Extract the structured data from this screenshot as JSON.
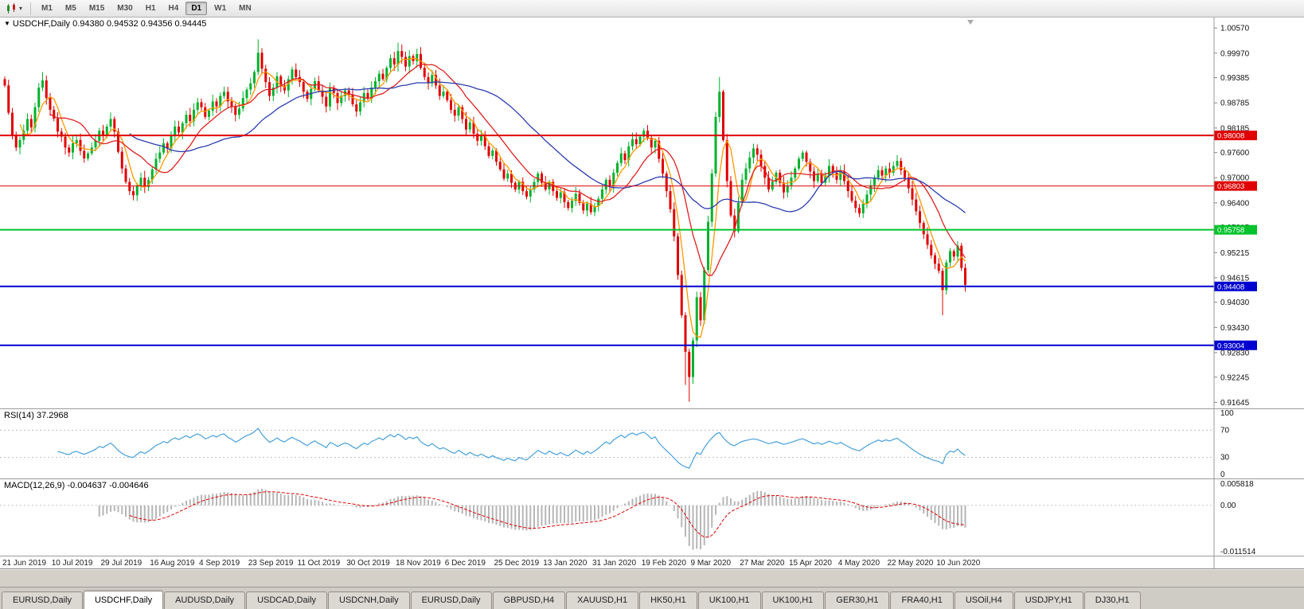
{
  "toolbar": {
    "timeframes": [
      "M1",
      "M5",
      "M15",
      "M30",
      "H1",
      "H4",
      "D1",
      "W1",
      "MN"
    ],
    "active_timeframe": "D1"
  },
  "chart": {
    "header_readout": "USDCHF,Daily 0.94380 0.94532 0.94356 0.94445"
  },
  "indicators": {
    "rsi": {
      "label": "RSI(14) 37.2968",
      "period": 14,
      "value": "37.2968",
      "levels": [
        "100",
        "70",
        "30",
        "0"
      ],
      "line_color": "#46a0dc"
    },
    "macd": {
      "label": "MACD(12,26,9) -0.004637 -0.004646",
      "fast": 12,
      "slow": 26,
      "signal": 9,
      "value": "-0.004637",
      "signal_value": "-0.004646",
      "axis_labels": [
        "0.005818",
        "0.00",
        "-0.011514"
      ],
      "histogram_color": "#b6b6b6",
      "signal_color": "#e00000"
    }
  },
  "tabs": {
    "items": [
      "EURUSD,Daily",
      "USDCHF,Daily",
      "AUDUSD,Daily",
      "USDCAD,Daily",
      "USDCNH,Daily",
      "EURUSD,Daily",
      "GBPUSD,H4",
      "XAUUSD,H1",
      "HK50,H1",
      "UK100,H1",
      "UK100,H1",
      "GER30,H1",
      "FRA40,H1",
      "USOil,H4",
      "USDJPY,H1",
      "DJ30,H1"
    ],
    "active_index": 1
  },
  "chart_data": {
    "type": "candlestick",
    "symbol": "USDCHF",
    "timeframe": "Daily",
    "ohlc_readout": {
      "open": "0.94380",
      "high": "0.94532",
      "low": "0.94356",
      "close": "0.94445"
    },
    "x_labels": [
      "21 Jun 2019",
      "10 Jul 2019",
      "29 Jul 2019",
      "16 Aug 2019",
      "4 Sep 2019",
      "23 Sep 2019",
      "11 Oct 2019",
      "30 Oct 2019",
      "18 Nov 2019",
      "6 Dec 2019",
      "25 Dec 2019",
      "13 Jan 2020",
      "31 Jan 2020",
      "19 Feb 2020",
      "9 Mar 2020",
      "27 Mar 2020",
      "15 Apr 2020",
      "4 May 2020",
      "22 May 2020",
      "10 Jun 2020"
    ],
    "bars_per_label": 13,
    "price_axis_ticks": [
      "1.00570",
      "0.99970",
      "0.99385",
      "0.98785",
      "0.98185",
      "0.97600",
      "0.97000",
      "0.96400",
      "0.95815",
      "0.95215",
      "0.94615",
      "0.94030",
      "0.93430",
      "0.92830",
      "0.92245",
      "0.91645"
    ],
    "hlines": [
      {
        "price": 0.98008,
        "label": "0.98008",
        "color": "#e00000",
        "width": 2
      },
      {
        "price": 0.96803,
        "label": "0.96803",
        "color": "#e00000",
        "width": 1
      },
      {
        "price": 0.95758,
        "label": "0.95758",
        "color": "#00c32b",
        "width": 2
      },
      {
        "price": 0.94408,
        "label": "0.94408",
        "color": "#0000d0",
        "width": 2
      },
      {
        "price": 0.93004,
        "label": "0.93004",
        "color": "#0000d0",
        "width": 2
      }
    ],
    "moving_averages": [
      {
        "period": 5,
        "color": "#ff9900"
      },
      {
        "period": 13,
        "color": "#e02020"
      },
      {
        "period": 34,
        "color": "#2a3cb0"
      }
    ],
    "colors": {
      "up": "#00b22c",
      "down": "#e00000",
      "wick_up": "#00b22c",
      "wick_down": "#e00000"
    },
    "closes": [
      0.992,
      0.9855,
      0.98,
      0.9772,
      0.979,
      0.9812,
      0.984,
      0.982,
      0.9868,
      0.9915,
      0.9932,
      0.989,
      0.9862,
      0.9841,
      0.981,
      0.9798,
      0.9772,
      0.976,
      0.9782,
      0.979,
      0.9764,
      0.9746,
      0.9758,
      0.9772,
      0.9788,
      0.9812,
      0.98,
      0.9822,
      0.984,
      0.981,
      0.9762,
      0.9722,
      0.969,
      0.9668,
      0.9658,
      0.9682,
      0.97,
      0.9678,
      0.9695,
      0.972,
      0.9745,
      0.976,
      0.9782,
      0.977,
      0.98,
      0.9822,
      0.9808,
      0.983,
      0.985,
      0.9835,
      0.9862,
      0.988,
      0.9868,
      0.9845,
      0.986,
      0.9882,
      0.987,
      0.9895,
      0.9905,
      0.9882,
      0.987,
      0.985,
      0.9865,
      0.989,
      0.991,
      0.9925,
      0.9952,
      0.9998,
      0.996,
      0.9928,
      0.9895,
      0.9915,
      0.9942,
      0.992,
      0.9908,
      0.9935,
      0.9958,
      0.994,
      0.9928,
      0.9905,
      0.9888,
      0.9912,
      0.993,
      0.9908,
      0.9893,
      0.987,
      0.9915,
      0.9902,
      0.9878,
      0.9895,
      0.9908,
      0.9898,
      0.9875,
      0.9858,
      0.988,
      0.9902,
      0.9888,
      0.9915,
      0.993,
      0.9948,
      0.9935,
      0.9962,
      0.9985,
      0.997,
      1.0002,
      0.9988,
      0.9965,
      0.999,
      0.9978,
      0.9995,
      0.9962,
      0.994,
      0.9925,
      0.9945,
      0.992,
      0.9895,
      0.9905,
      0.9885,
      0.9862,
      0.9848,
      0.9868,
      0.984,
      0.9815,
      0.9832,
      0.9805,
      0.9788,
      0.98,
      0.9775,
      0.9752,
      0.9765,
      0.9738,
      0.972,
      0.9698,
      0.971,
      0.9688,
      0.9672,
      0.969,
      0.9668,
      0.9655,
      0.9672,
      0.969,
      0.971,
      0.9688,
      0.9672,
      0.969,
      0.9668,
      0.9652,
      0.9665,
      0.9642,
      0.9628,
      0.9645,
      0.9662,
      0.964,
      0.9622,
      0.9638,
      0.9618,
      0.9632,
      0.965,
      0.9672,
      0.9695,
      0.968,
      0.9712,
      0.9735,
      0.9758,
      0.9742,
      0.9775,
      0.9792,
      0.978,
      0.9798,
      0.9812,
      0.9795,
      0.9772,
      0.9788,
      0.9745,
      0.971,
      0.9668,
      0.9625,
      0.956,
      0.9468,
      0.9372,
      0.9285,
      0.9225,
      0.9312,
      0.9415,
      0.936,
      0.948,
      0.9595,
      0.971,
      0.9845,
      0.9905,
      0.979,
      0.9692,
      0.961,
      0.9572,
      0.964,
      0.9695,
      0.9722,
      0.9748,
      0.977,
      0.9755,
      0.9728,
      0.97,
      0.9672,
      0.969,
      0.9712,
      0.9688,
      0.9665,
      0.9682,
      0.97,
      0.9722,
      0.9745,
      0.976,
      0.9738,
      0.9715,
      0.9692,
      0.971,
      0.9688,
      0.9705,
      0.9728,
      0.9712,
      0.9695,
      0.9715,
      0.9692,
      0.9668,
      0.9645,
      0.9628,
      0.9615,
      0.9638,
      0.966,
      0.9682,
      0.97,
      0.9718,
      0.9705,
      0.9722,
      0.9712,
      0.9728,
      0.974,
      0.9718,
      0.97,
      0.9675,
      0.9648,
      0.962,
      0.9592,
      0.9565,
      0.954,
      0.9515,
      0.9495,
      0.9478,
      0.9432,
      0.9498,
      0.9525,
      0.9512,
      0.9538,
      0.9485,
      0.94445
    ],
    "high_overrides": {
      "10": 0.9952,
      "67": 1.003,
      "104": 1.0022,
      "169": 0.9818,
      "189": 0.994
    },
    "low_overrides": {
      "34": 0.9646,
      "155": 0.9612,
      "180": 0.9206,
      "181": 0.9166,
      "226": 0.9606,
      "248": 0.9372
    }
  }
}
